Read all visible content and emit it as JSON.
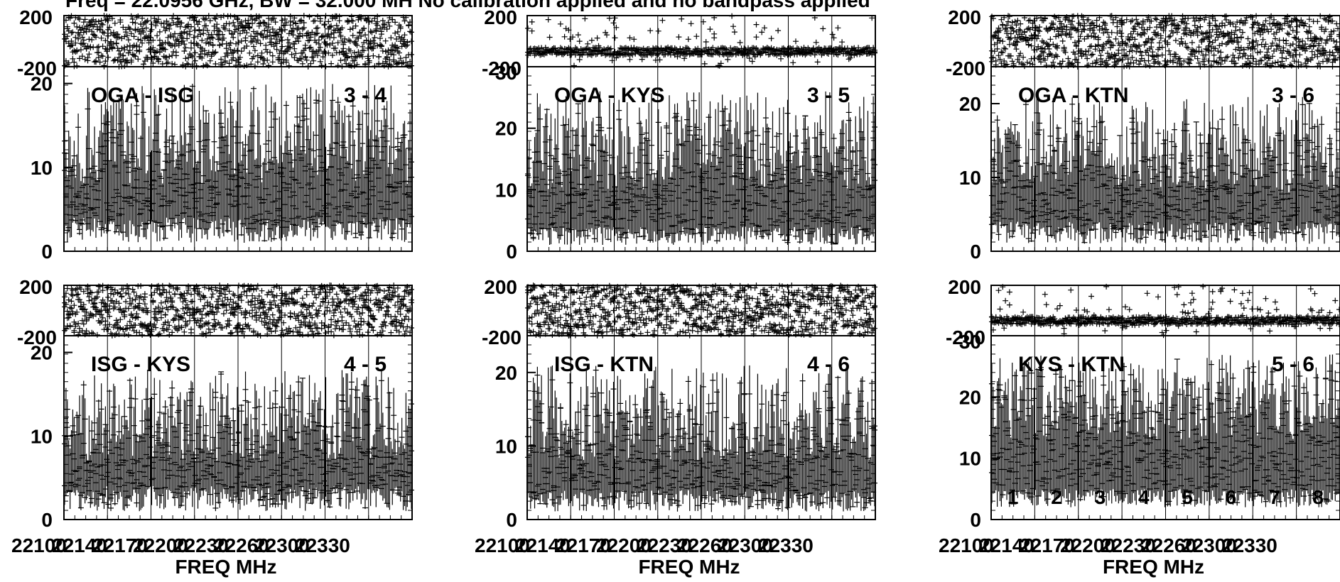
{
  "title": "Freq = 22.0956 GHz, BW = 32.000 MH   No calibration applied and no bandpass applied",
  "chart_data": {
    "type": "scatter",
    "marker": "+",
    "marker_color": "#000000",
    "background": "#ffffff",
    "xlabel": "FREQ MHz",
    "x_tick_labels": [
      "22100",
      "22140",
      "22170",
      "22200",
      "22230",
      "22260",
      "22300",
      "22330"
    ],
    "x_range_mhz": [
      22080,
      22112
    ],
    "phase_ylim": [
      -200,
      200
    ],
    "phase_tick_labels": [
      "200",
      "-200"
    ],
    "channel_labels": [
      "1",
      "2",
      "3",
      "4",
      "5",
      "6",
      "7",
      "8"
    ],
    "panels": [
      {
        "baseline": "OGA - ISG",
        "pair": "3 - 4",
        "amp_ylim": [
          0,
          22
        ],
        "amp_tick_labels": [
          "0",
          "10",
          "20"
        ],
        "amp_mean": 8,
        "amp_spread": 12,
        "amp_floor": 1,
        "phase_mode": "noisy"
      },
      {
        "baseline": "OGA - KYS",
        "pair": "3 - 5",
        "amp_ylim": [
          0,
          30
        ],
        "amp_tick_labels": [
          "0",
          "10",
          "20",
          "30"
        ],
        "amp_mean": 10,
        "amp_spread": 16,
        "amp_floor": 1,
        "phase_mode": "band"
      },
      {
        "baseline": "OGA - KTN",
        "pair": "3 - 6",
        "amp_ylim": [
          0,
          25
        ],
        "amp_tick_labels": [
          "0",
          "10",
          "20"
        ],
        "amp_mean": 8,
        "amp_spread": 13,
        "amp_floor": 1,
        "phase_mode": "noisy"
      },
      {
        "baseline": "ISG - KYS",
        "pair": "4 - 5",
        "amp_ylim": [
          0,
          22
        ],
        "amp_tick_labels": [
          "0",
          "10",
          "20"
        ],
        "amp_mean": 7,
        "amp_spread": 11,
        "amp_floor": 1,
        "phase_mode": "noisy"
      },
      {
        "baseline": "ISG - KTN",
        "pair": "4 - 6",
        "amp_ylim": [
          0,
          25
        ],
        "amp_tick_labels": [
          "0",
          "10",
          "20"
        ],
        "amp_mean": 8,
        "amp_spread": 13,
        "amp_floor": 1,
        "phase_mode": "noisy"
      },
      {
        "baseline": "KYS - KTN",
        "pair": "5 - 6",
        "amp_ylim": [
          0,
          30
        ],
        "amp_tick_labels": [
          "0",
          "10",
          "20",
          "30"
        ],
        "amp_mean": 13,
        "amp_spread": 14,
        "amp_floor": 2,
        "phase_mode": "band"
      }
    ]
  }
}
